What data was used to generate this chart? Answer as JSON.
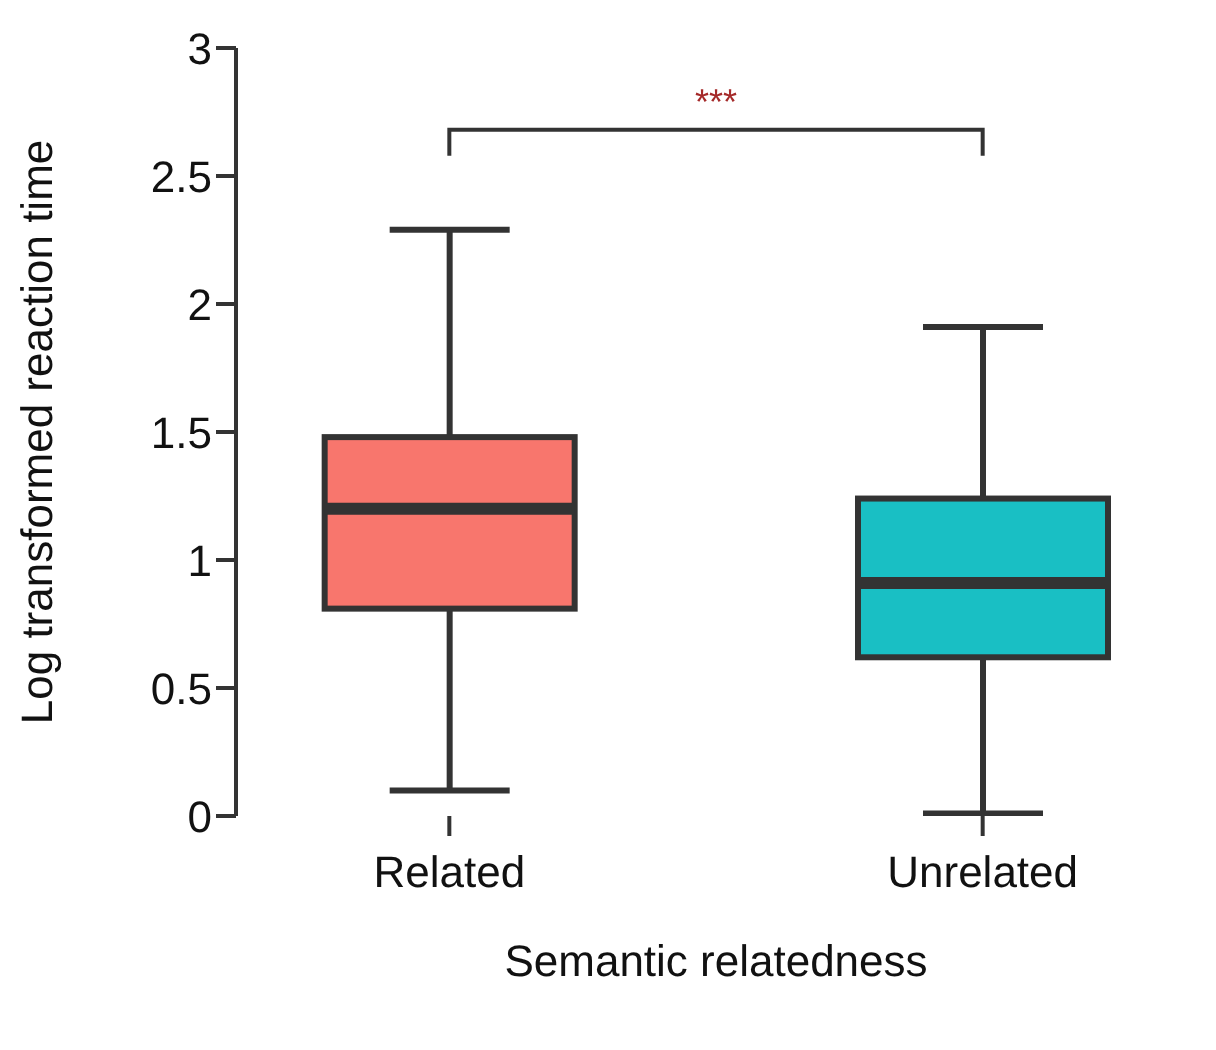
{
  "chart_data": {
    "type": "box",
    "xlabel": "Semantic relatedness",
    "ylabel": "Log transformed reaction time",
    "categories": [
      "Related",
      "Unrelated"
    ],
    "colors": [
      "#f8766d",
      "#19bfc4"
    ],
    "boxes": [
      {
        "low": 0.1,
        "q1": 0.81,
        "median": 1.2,
        "q3": 1.48,
        "high": 2.29
      },
      {
        "low": 0.01,
        "q1": 0.62,
        "median": 0.91,
        "q3": 1.24,
        "high": 1.91
      }
    ],
    "ylim": [
      0,
      3
    ],
    "yticks": [
      0,
      0.5,
      1,
      1.5,
      2,
      2.5,
      3
    ],
    "annotations": [
      "***"
    ],
    "grid": false,
    "legend": false
  }
}
